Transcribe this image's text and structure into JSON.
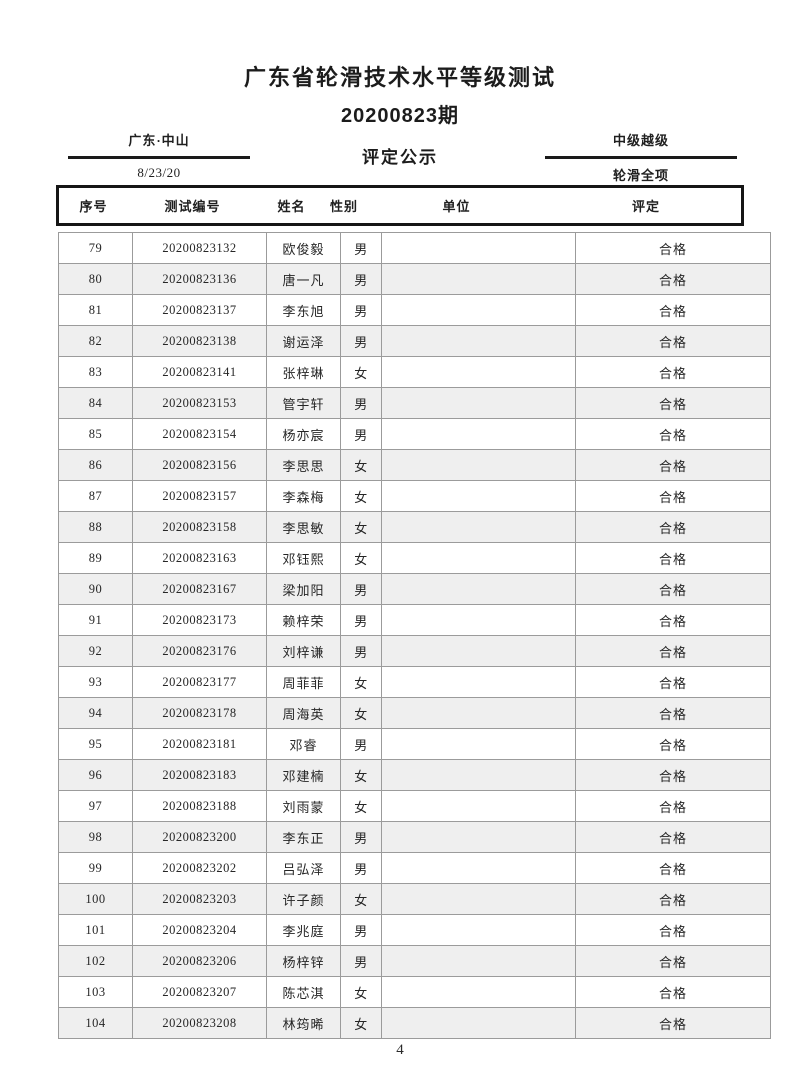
{
  "colors": {
    "ink": "#1c1c1c",
    "grid": "#9b9b9b",
    "stripe": "#efefef",
    "paper": "#ffffff"
  },
  "header": {
    "title": "广东省轮滑技术水平等级测试",
    "session": "20200823期",
    "location": "广东·中山",
    "date": "8/23/20",
    "notice": "评定公示",
    "level": "中级越级",
    "category": "轮滑全项"
  },
  "table": {
    "headers": [
      "序号",
      "测试编号",
      "姓名",
      "性别",
      "单位",
      "评定"
    ],
    "rows": [
      [
        "79",
        "20200823132",
        "欧俊毅",
        "男",
        "",
        "合格"
      ],
      [
        "80",
        "20200823136",
        "唐一凡",
        "男",
        "",
        "合格"
      ],
      [
        "81",
        "20200823137",
        "李东旭",
        "男",
        "",
        "合格"
      ],
      [
        "82",
        "20200823138",
        "谢运泽",
        "男",
        "",
        "合格"
      ],
      [
        "83",
        "20200823141",
        "张梓琳",
        "女",
        "",
        "合格"
      ],
      [
        "84",
        "20200823153",
        "管宇轩",
        "男",
        "",
        "合格"
      ],
      [
        "85",
        "20200823154",
        "杨亦宸",
        "男",
        "",
        "合格"
      ],
      [
        "86",
        "20200823156",
        "李思思",
        "女",
        "",
        "合格"
      ],
      [
        "87",
        "20200823157",
        "李森梅",
        "女",
        "",
        "合格"
      ],
      [
        "88",
        "20200823158",
        "李思敏",
        "女",
        "",
        "合格"
      ],
      [
        "89",
        "20200823163",
        "邓钰熙",
        "女",
        "",
        "合格"
      ],
      [
        "90",
        "20200823167",
        "梁加阳",
        "男",
        "",
        "合格"
      ],
      [
        "91",
        "20200823173",
        "赖梓荣",
        "男",
        "",
        "合格"
      ],
      [
        "92",
        "20200823176",
        "刘梓谦",
        "男",
        "",
        "合格"
      ],
      [
        "93",
        "20200823177",
        "周菲菲",
        "女",
        "",
        "合格"
      ],
      [
        "94",
        "20200823178",
        "周海英",
        "女",
        "",
        "合格"
      ],
      [
        "95",
        "20200823181",
        "邓睿",
        "男",
        "",
        "合格"
      ],
      [
        "96",
        "20200823183",
        "邓建楠",
        "女",
        "",
        "合格"
      ],
      [
        "97",
        "20200823188",
        "刘雨蒙",
        "女",
        "",
        "合格"
      ],
      [
        "98",
        "20200823200",
        "李东正",
        "男",
        "",
        "合格"
      ],
      [
        "99",
        "20200823202",
        "吕弘泽",
        "男",
        "",
        "合格"
      ],
      [
        "100",
        "20200823203",
        "许子颜",
        "女",
        "",
        "合格"
      ],
      [
        "101",
        "20200823204",
        "李兆庭",
        "男",
        "",
        "合格"
      ],
      [
        "102",
        "20200823206",
        "杨梓锌",
        "男",
        "",
        "合格"
      ],
      [
        "103",
        "20200823207",
        "陈芯淇",
        "女",
        "",
        "合格"
      ],
      [
        "104",
        "20200823208",
        "林筠晞",
        "女",
        "",
        "合格"
      ]
    ]
  },
  "footer": {
    "page_number": "4"
  }
}
